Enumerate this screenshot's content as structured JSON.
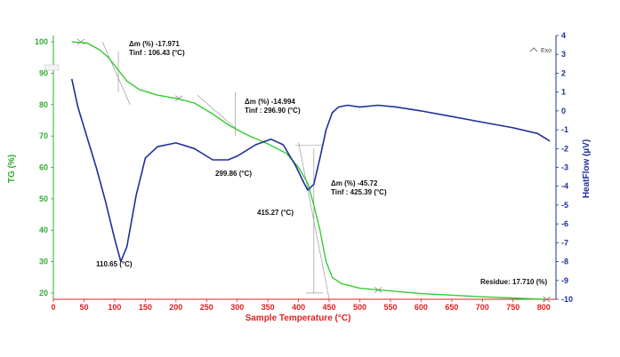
{
  "chart_data": {
    "type": "line",
    "xlabel": "Sample Temperature (°C)",
    "ylabel_left": "TG (%)",
    "ylabel_right": "HeatFlow (µV)",
    "xlim": [
      0,
      820
    ],
    "ylim_left": [
      18,
      102
    ],
    "ylim_right": [
      -10,
      4
    ],
    "x_ticks": [
      0,
      50,
      100,
      150,
      200,
      250,
      300,
      350,
      400,
      450,
      500,
      550,
      600,
      650,
      700,
      750,
      800
    ],
    "y_ticks_left": [
      20,
      30,
      40,
      50,
      60,
      70,
      80,
      90,
      100
    ],
    "y_ticks_right": [
      4,
      3,
      2,
      1,
      0,
      -1,
      -2,
      -3,
      -4,
      -5,
      -6,
      -7,
      -8,
      -9,
      -10
    ],
    "legend": "Exo",
    "series": [
      {
        "name": "TG",
        "axis": "left",
        "color": "#33cc33",
        "points": [
          [
            30,
            100
          ],
          [
            55,
            99.6
          ],
          [
            75,
            97.5
          ],
          [
            90,
            95
          ],
          [
            106,
            91
          ],
          [
            120,
            87.5
          ],
          [
            140,
            84.8
          ],
          [
            170,
            83
          ],
          [
            200,
            82
          ],
          [
            230,
            80.5
          ],
          [
            260,
            77
          ],
          [
            290,
            73
          ],
          [
            320,
            70
          ],
          [
            350,
            67.5
          ],
          [
            380,
            64.5
          ],
          [
            400,
            60
          ],
          [
            415,
            55
          ],
          [
            425,
            48
          ],
          [
            435,
            40
          ],
          [
            445,
            30
          ],
          [
            455,
            25
          ],
          [
            470,
            23
          ],
          [
            500,
            21.5
          ],
          [
            530,
            21
          ],
          [
            600,
            19.8
          ],
          [
            700,
            18.8
          ],
          [
            800,
            18
          ]
        ]
      },
      {
        "name": "HeatFlow",
        "axis": "right",
        "color": "#1f2f9a",
        "points": [
          [
            30,
            1.7
          ],
          [
            40,
            0.2
          ],
          [
            55,
            -1.4
          ],
          [
            70,
            -3.0
          ],
          [
            85,
            -4.8
          ],
          [
            100,
            -6.8
          ],
          [
            110,
            -8.0
          ],
          [
            120,
            -7.2
          ],
          [
            135,
            -4.5
          ],
          [
            150,
            -2.5
          ],
          [
            170,
            -1.9
          ],
          [
            200,
            -1.7
          ],
          [
            230,
            -2.0
          ],
          [
            260,
            -2.6
          ],
          [
            285,
            -2.6
          ],
          [
            300,
            -2.4
          ],
          [
            330,
            -1.8
          ],
          [
            355,
            -1.5
          ],
          [
            375,
            -1.8
          ],
          [
            395,
            -2.9
          ],
          [
            410,
            -3.9
          ],
          [
            415,
            -4.2
          ],
          [
            425,
            -3.9
          ],
          [
            435,
            -2.5
          ],
          [
            445,
            -1.0
          ],
          [
            455,
            -0.1
          ],
          [
            465,
            0.2
          ],
          [
            480,
            0.3
          ],
          [
            500,
            0.2
          ],
          [
            530,
            0.3
          ],
          [
            560,
            0.2
          ],
          [
            600,
            0.0
          ],
          [
            650,
            -0.3
          ],
          [
            700,
            -0.6
          ],
          [
            750,
            -0.9
          ],
          [
            790,
            -1.2
          ],
          [
            810,
            -1.6
          ]
        ]
      }
    ],
    "annotations": [
      {
        "id": "step1",
        "mass_line": "Δm (%) -17.971",
        "tinf_line": "Tinf : 106.43 (°C)"
      },
      {
        "id": "step2",
        "mass_line": "Δm (%) -14.994",
        "tinf_line": "Tinf : 296.90 (°C)"
      },
      {
        "id": "step3",
        "mass_line": "Δm (%) -45.72",
        "tinf_line": "Tinf : 425.39 (°C)"
      },
      {
        "id": "peak1",
        "text": "110.65 (°C)"
      },
      {
        "id": "peak2",
        "text": "299.86 (°C)"
      },
      {
        "id": "peak3",
        "text": "415.27 (°C)"
      },
      {
        "id": "residue",
        "text": "Residue: 17.710 (%)"
      }
    ]
  }
}
